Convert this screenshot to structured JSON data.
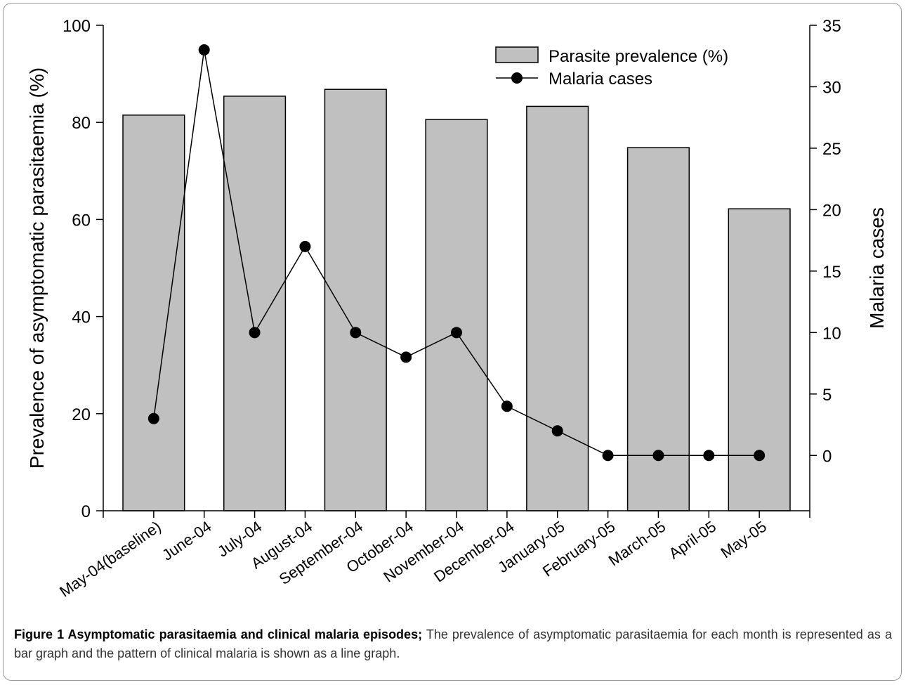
{
  "chart_data": {
    "type": "bar",
    "categories": [
      "May-04(baseline)",
      "June-04",
      "July-04",
      "August-04",
      "September-04",
      "October-04",
      "November-04",
      "December-04",
      "January-05",
      "February-05",
      "March-05",
      "April-05",
      "May-05"
    ],
    "series": [
      {
        "name": "Parasite prevalence (%)",
        "type": "bar",
        "axis": "left",
        "values": [
          81.5,
          null,
          85.4,
          null,
          86.8,
          null,
          80.6,
          null,
          83.3,
          null,
          74.8,
          null,
          62.2
        ],
        "color": "#c0c0c0"
      },
      {
        "name": "Malaria cases",
        "type": "line",
        "axis": "right",
        "values": [
          3,
          33,
          10,
          17,
          10,
          8,
          10,
          4,
          2,
          0,
          0,
          0,
          0
        ],
        "color": "#000000"
      }
    ],
    "ylabel": "Prevalence of asymptomatic parasitaemia (%)",
    "ylim": [
      0,
      100
    ],
    "yticks": [
      0,
      20,
      40,
      60,
      80,
      100
    ],
    "y2label": "Malaria cases",
    "y2lim": [
      -4.5,
      35
    ],
    "y2ticks": [
      0,
      5,
      10,
      15,
      20,
      25,
      30,
      35
    ],
    "legend": "top-right",
    "grid": false
  },
  "caption": {
    "title": "Figure 1 Asymptomatic parasitaemia and clinical malaria episodes;",
    "text": " The prevalence of asymptomatic parasitaemia for each month is represented as a bar graph and the pattern of clinical malaria is shown as a line graph."
  }
}
